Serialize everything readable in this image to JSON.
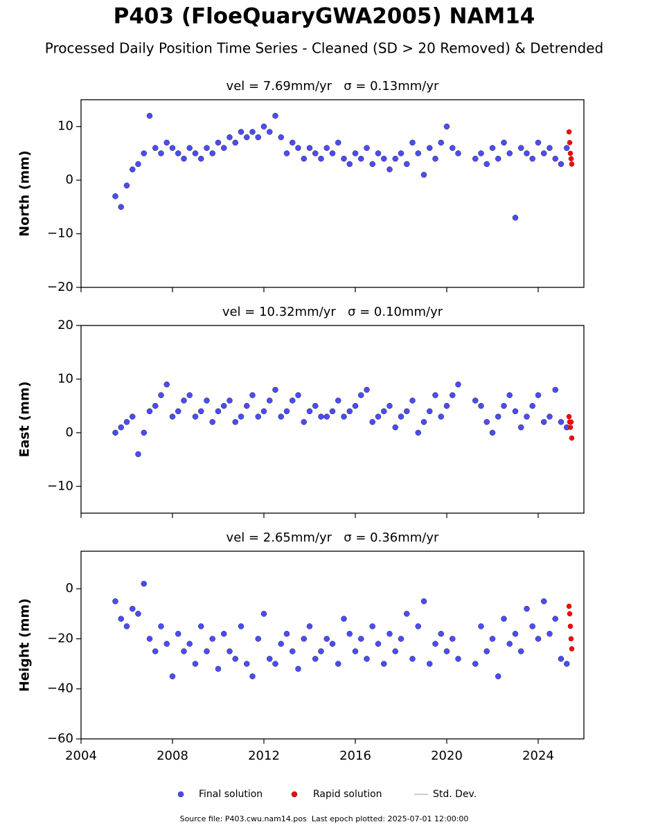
{
  "title": "P403 (FloeQuaryGWA2005) NAM14",
  "subtitle": "Processed Daily Position Time Series - Cleaned (SD > 20 Removed) & Detrended",
  "error_legend": "Std. Dev.",
  "footer": "Source file: P403.cwu.nam14.pos  Last epoch plotted: 2025-07-01 12:00:00",
  "chart_data": [
    {
      "type": "scatter",
      "title": "vel = 7.69mm/yr   σ = 0.13mm/yr",
      "y_label": "North (mm)",
      "xlim": [
        2004,
        2026
      ],
      "xticks": [
        2004,
        2008,
        2012,
        2016,
        2020,
        2024
      ],
      "xtick_labels": false,
      "ylim": [
        -20,
        15
      ],
      "yticks": [
        {
          "value": -20,
          "label": "−20"
        },
        {
          "value": -10,
          "label": "−10"
        },
        0,
        10
      ],
      "series": [
        {
          "name": "Final solution",
          "color": "#4b4bff",
          "x": [
            2005.5,
            2005.75,
            2006,
            2006.25,
            2006.5,
            2006.75,
            2007,
            2007.25,
            2007.5,
            2007.75,
            2008,
            2008.25,
            2008.5,
            2008.75,
            2009,
            2009.25,
            2009.5,
            2009.75,
            2010,
            2010.25,
            2010.5,
            2010.75,
            2011,
            2011.25,
            2011.5,
            2011.75,
            2012,
            2012.25,
            2012.5,
            2012.75,
            2013,
            2013.25,
            2013.5,
            2013.75,
            2014,
            2014.25,
            2014.5,
            2014.75,
            2015,
            2015.25,
            2015.5,
            2015.75,
            2016,
            2016.25,
            2016.5,
            2016.75,
            2017,
            2017.25,
            2017.5,
            2017.75,
            2018,
            2018.25,
            2018.5,
            2018.75,
            2019,
            2019.25,
            2019.5,
            2019.75,
            2020,
            2020.25,
            2020.5,
            2021.25,
            2021.5,
            2021.75,
            2022,
            2022.25,
            2022.5,
            2022.75,
            2023,
            2023.25,
            2023.5,
            2023.75,
            2024,
            2024.25,
            2024.5,
            2024.75,
            2025,
            2025.25
          ],
          "values": [
            -3,
            -5,
            -1,
            2,
            3,
            5,
            12,
            6,
            5,
            7,
            6,
            5,
            4,
            6,
            5,
            4,
            6,
            5,
            7,
            6,
            8,
            7,
            9,
            8,
            9,
            8,
            10,
            9,
            12,
            8,
            5,
            7,
            6,
            4,
            6,
            5,
            4,
            6,
            5,
            7,
            4,
            3,
            5,
            4,
            6,
            3,
            5,
            4,
            2,
            4,
            5,
            3,
            7,
            5,
            1,
            6,
            4,
            7,
            10,
            6,
            5,
            4,
            5,
            3,
            6,
            4,
            7,
            5,
            -7,
            6,
            5,
            4,
            7,
            5,
            6,
            4,
            3,
            6
          ]
        },
        {
          "name": "Rapid solution",
          "color": "#ff0000",
          "x": [
            2025.35,
            2025.38,
            2025.41,
            2025.44,
            2025.47
          ],
          "values": [
            9,
            7,
            5,
            4,
            3
          ]
        }
      ]
    },
    {
      "type": "scatter",
      "title": "vel = 10.32mm/yr   σ = 0.10mm/yr",
      "y_label": "East (mm)",
      "xlim": [
        2004,
        2026
      ],
      "xticks": [
        2004,
        2008,
        2012,
        2016,
        2020,
        2024
      ],
      "xtick_labels": false,
      "ylim": [
        -15,
        20
      ],
      "yticks": [
        {
          "value": -10,
          "label": "−10"
        },
        0,
        10,
        20
      ],
      "series": [
        {
          "name": "Final solution",
          "color": "#4b4bff",
          "x": [
            2005.5,
            2005.75,
            2006,
            2006.25,
            2006.5,
            2006.75,
            2007,
            2007.25,
            2007.5,
            2007.75,
            2008,
            2008.25,
            2008.5,
            2008.75,
            2009,
            2009.25,
            2009.5,
            2009.75,
            2010,
            2010.25,
            2010.5,
            2010.75,
            2011,
            2011.25,
            2011.5,
            2011.75,
            2012,
            2012.25,
            2012.5,
            2012.75,
            2013,
            2013.25,
            2013.5,
            2013.75,
            2014,
            2014.25,
            2014.5,
            2014.75,
            2015,
            2015.25,
            2015.5,
            2015.75,
            2016,
            2016.25,
            2016.5,
            2016.75,
            2017,
            2017.25,
            2017.5,
            2017.75,
            2018,
            2018.25,
            2018.5,
            2018.75,
            2019,
            2019.25,
            2019.5,
            2019.75,
            2020,
            2020.25,
            2020.5,
            2021.25,
            2021.5,
            2021.75,
            2022,
            2022.25,
            2022.5,
            2022.75,
            2023,
            2023.25,
            2023.5,
            2023.75,
            2024,
            2024.25,
            2024.5,
            2024.75,
            2025,
            2025.25
          ],
          "values": [
            0,
            1,
            2,
            3,
            -4,
            0,
            4,
            5,
            7,
            9,
            3,
            4,
            6,
            7,
            3,
            4,
            6,
            2,
            4,
            5,
            6,
            2,
            3,
            5,
            7,
            3,
            4,
            6,
            8,
            3,
            4,
            6,
            7,
            2,
            4,
            5,
            3,
            3,
            4,
            6,
            3,
            4,
            5,
            7,
            8,
            2,
            3,
            4,
            5,
            1,
            3,
            4,
            6,
            0,
            2,
            4,
            7,
            3,
            5,
            7,
            9,
            6,
            5,
            2,
            0,
            3,
            5,
            7,
            4,
            1,
            3,
            5,
            7,
            2,
            3,
            8,
            2,
            1
          ]
        },
        {
          "name": "Rapid solution",
          "color": "#ff0000",
          "x": [
            2025.35,
            2025.38,
            2025.41,
            2025.44,
            2025.47
          ],
          "values": [
            3,
            2,
            1,
            2,
            -1
          ]
        }
      ]
    },
    {
      "type": "scatter",
      "title": "vel = 2.65mm/yr   σ = 0.36mm/yr",
      "y_label": "Height (mm)",
      "xlim": [
        2004,
        2026
      ],
      "xticks": [
        2004,
        2008,
        2012,
        2016,
        2020,
        2024
      ],
      "xtick_labels": true,
      "ylim": [
        -60,
        15
      ],
      "yticks": [
        {
          "value": -60,
          "label": "−60"
        },
        {
          "value": -40,
          "label": "−40"
        },
        {
          "value": -20,
          "label": "−20"
        },
        0
      ],
      "series": [
        {
          "name": "Final solution",
          "color": "#4b4bff",
          "x": [
            2005.5,
            2005.75,
            2006,
            2006.25,
            2006.5,
            2006.75,
            2007,
            2007.25,
            2007.5,
            2007.75,
            2008,
            2008.25,
            2008.5,
            2008.75,
            2009,
            2009.25,
            2009.5,
            2009.75,
            2010,
            2010.25,
            2010.5,
            2010.75,
            2011,
            2011.25,
            2011.5,
            2011.75,
            2012,
            2012.25,
            2012.5,
            2012.75,
            2013,
            2013.25,
            2013.5,
            2013.75,
            2014,
            2014.25,
            2014.5,
            2014.75,
            2015,
            2015.25,
            2015.5,
            2015.75,
            2016,
            2016.25,
            2016.5,
            2016.75,
            2017,
            2017.25,
            2017.5,
            2017.75,
            2018,
            2018.25,
            2018.5,
            2018.75,
            2019,
            2019.25,
            2019.5,
            2019.75,
            2020,
            2020.25,
            2020.5,
            2021.25,
            2021.5,
            2021.75,
            2022,
            2022.25,
            2022.5,
            2022.75,
            2023,
            2023.25,
            2023.5,
            2023.75,
            2024,
            2024.25,
            2024.5,
            2024.75,
            2025,
            2025.25
          ],
          "values": [
            -5,
            -12,
            -15,
            -8,
            -10,
            2,
            -20,
            -25,
            -15,
            -22,
            -35,
            -18,
            -25,
            -22,
            -30,
            -15,
            -25,
            -20,
            -32,
            -18,
            -25,
            -28,
            -15,
            -30,
            -35,
            -20,
            -10,
            -28,
            -30,
            -22,
            -18,
            -25,
            -32,
            -20,
            -15,
            -28,
            -25,
            -20,
            -22,
            -30,
            -12,
            -18,
            -25,
            -20,
            -28,
            -15,
            -22,
            -30,
            -18,
            -25,
            -20,
            -10,
            -28,
            -15,
            -5,
            -30,
            -22,
            -18,
            -25,
            -20,
            -28,
            -30,
            -15,
            -25,
            -20,
            -35,
            -12,
            -22,
            -18,
            -25,
            -8,
            -15,
            -20,
            -5,
            -18,
            -12,
            -28,
            -30
          ]
        },
        {
          "name": "Rapid solution",
          "color": "#ff0000",
          "x": [
            2025.35,
            2025.38,
            2025.41,
            2025.44,
            2025.47
          ],
          "values": [
            -7,
            -10,
            -15,
            -20,
            -24
          ]
        }
      ]
    }
  ]
}
